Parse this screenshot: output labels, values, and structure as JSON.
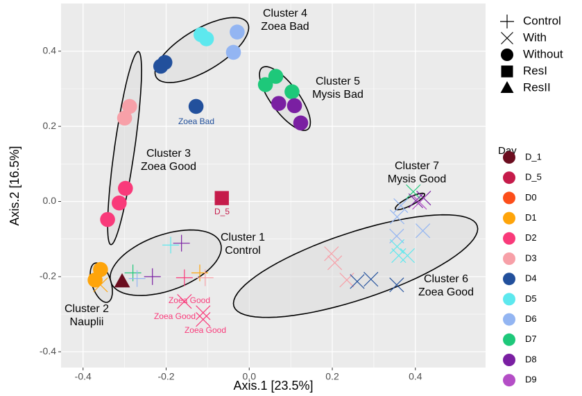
{
  "chart_data": {
    "type": "scatter",
    "x_label": "Axis.1   [23.5%]",
    "y_label": "Axis.2   [16.5%]",
    "xlim": [
      -0.453,
      0.569
    ],
    "ylim": [
      -0.442,
      0.527
    ],
    "xticks": [
      -0.4,
      -0.2,
      {
        "value": 0,
        "label": "0.0"
      },
      0.2,
      0.4
    ],
    "yticks": [
      -0.4,
      -0.2,
      {
        "value": 0,
        "label": "0.0"
      },
      0.2,
      0.4
    ],
    "grid": true,
    "shape_legend": [
      "Control",
      "With",
      "Without",
      "ResI",
      "ResII"
    ],
    "color_legend_title": "Day",
    "days": [
      {
        "name": "D_1",
        "color": "#6b0d1f"
      },
      {
        "name": "D_5",
        "color": "#c51b4a"
      },
      {
        "name": "D0",
        "color": "#fc4e1a"
      },
      {
        "name": "D1",
        "color": "#fea40a"
      },
      {
        "name": "D2",
        "color": "#f93a7a"
      },
      {
        "name": "D3",
        "color": "#f7a0a8"
      },
      {
        "name": "D4",
        "color": "#22509c"
      },
      {
        "name": "D5",
        "color": "#5de8ee"
      },
      {
        "name": "D6",
        "color": "#93b5f2"
      },
      {
        "name": "D7",
        "color": "#1ec87a"
      },
      {
        "name": "D8",
        "color": "#7a1fa2"
      },
      {
        "name": "D9",
        "color": "#b44ec6"
      }
    ],
    "series": [
      {
        "day": "D6",
        "shape": "Without",
        "x": [
          -0.029,
          -0.038
        ],
        "values": [
          0.451,
          0.397
        ]
      },
      {
        "day": "D5",
        "shape": "Without",
        "x": [
          -0.116,
          -0.103
        ],
        "values": [
          0.444,
          0.433
        ]
      },
      {
        "day": "D4",
        "shape": "Without",
        "x": [
          -0.203,
          -0.213,
          -0.128
        ],
        "values": [
          0.37,
          0.36,
          0.253
        ]
      },
      {
        "day": "D7",
        "shape": "Without",
        "x": [
          0.039,
          0.064,
          0.103
        ],
        "values": [
          0.311,
          0.333,
          0.292
        ]
      },
      {
        "day": "D8",
        "shape": "Without",
        "x": [
          0.071,
          0.109,
          0.124
        ],
        "values": [
          0.261,
          0.255,
          0.209
        ]
      },
      {
        "day": "D3",
        "shape": "Without",
        "x": [
          -0.288,
          -0.3
        ],
        "values": [
          0.253,
          0.222
        ]
      },
      {
        "day": "D2",
        "shape": "Without",
        "x": [
          -0.298,
          -0.313,
          -0.341
        ],
        "values": [
          0.035,
          -0.004,
          -0.048
        ]
      },
      {
        "day": "D1",
        "shape": "Without",
        "x": [
          -0.358,
          -0.371
        ],
        "values": [
          -0.181,
          -0.209
        ]
      },
      {
        "day": "D_5",
        "shape": "ResI",
        "x": [
          -0.066
        ],
        "values": [
          0.009
        ]
      },
      {
        "day": "D_1",
        "shape": "ResII",
        "x": [
          -0.306
        ],
        "values": [
          -0.213
        ]
      },
      {
        "day": "D5",
        "shape": "Control",
        "x": [
          -0.189
        ],
        "values": [
          -0.116
        ]
      },
      {
        "day": "D8",
        "shape": "Control",
        "x": [
          -0.163,
          -0.233
        ],
        "values": [
          -0.111,
          -0.2
        ]
      },
      {
        "day": "D7",
        "shape": "Control",
        "x": [
          -0.28
        ],
        "values": [
          -0.19
        ]
      },
      {
        "day": "D6",
        "shape": "Control",
        "x": [
          -0.27
        ],
        "values": [
          -0.205
        ]
      },
      {
        "day": "D2",
        "shape": "Control",
        "x": [
          -0.156
        ],
        "values": [
          -0.203
        ]
      },
      {
        "day": "D1",
        "shape": "Control",
        "x": [
          -0.119,
          -0.366
        ],
        "values": [
          -0.19,
          -0.195
        ]
      },
      {
        "day": "D3",
        "shape": "Control",
        "x": [
          -0.106
        ],
        "values": [
          -0.203
        ]
      },
      {
        "day": "D2",
        "shape": "With",
        "x": [
          -0.156,
          -0.111,
          -0.111
        ],
        "values": [
          -0.266,
          -0.296,
          -0.314
        ]
      },
      {
        "day": "D3",
        "shape": "With",
        "x": [
          0.198,
          0.206,
          0.235
        ],
        "values": [
          -0.139,
          -0.163,
          -0.209
        ]
      },
      {
        "day": "D4",
        "shape": "With",
        "x": [
          0.26,
          0.293,
          0.355
        ],
        "values": [
          -0.213,
          -0.207,
          -0.222
        ]
      },
      {
        "day": "D6",
        "shape": "With",
        "x": [
          0.356,
          0.355,
          0.418,
          0.365
        ],
        "values": [
          -0.041,
          -0.092,
          -0.078,
          -0.011
        ]
      },
      {
        "day": "D5",
        "shape": "With",
        "x": [
          0.356,
          0.36,
          0.381
        ],
        "values": [
          -0.12,
          -0.144,
          -0.144
        ]
      },
      {
        "day": "D7",
        "shape": "With",
        "x": [
          0.395
        ],
        "values": [
          0.026
        ]
      },
      {
        "day": "D8",
        "shape": "With",
        "x": [
          0.401,
          0.42
        ],
        "values": [
          0.002,
          0.009
        ]
      },
      {
        "day": "D9",
        "shape": "With",
        "x": [
          0.41
        ],
        "values": [
          -0.002
        ]
      },
      {
        "day": "D1",
        "shape": "With",
        "x": [
          -0.358
        ],
        "values": [
          -0.222
        ]
      }
    ],
    "clusters": [
      {
        "lines": [
          "Cluster 4",
          "Zoea Bad"
        ],
        "center": [
          -0.114,
          0.403
        ],
        "axis_a": [
          -0.004,
          0.475
        ],
        "axis_b": [
          -0.089,
          0.355
        ]
      },
      {
        "lines": [
          "Cluster 5",
          "Mysis Bad"
        ],
        "center": [
          0.086,
          0.274
        ],
        "axis_a": [
          0.141,
          0.192
        ],
        "axis_b": [
          0.113,
          0.296
        ]
      },
      {
        "lines": [
          "Cluster 3",
          "Zoea Good"
        ],
        "center": [
          -0.3,
          0.142
        ],
        "axis_a": [
          -0.267,
          0.399
        ],
        "axis_b": [
          -0.276,
          0.139
        ]
      },
      {
        "lines": [
          "Cluster 7",
          "Mysis Good"
        ],
        "center": [
          0.387,
          0.0
        ],
        "axis_a": [
          0.422,
          0.02
        ],
        "axis_b": [
          0.392,
          -0.009
        ]
      },
      {
        "lines": [
          "Cluster 1",
          "Control"
        ],
        "center": [
          -0.201,
          -0.163
        ],
        "axis_a": [
          -0.069,
          -0.111
        ],
        "axis_b": [
          -0.179,
          -0.233
        ]
      },
      {
        "lines": [
          "Cluster 6",
          "Zoea Good"
        ],
        "center": [
          0.256,
          -0.172
        ],
        "axis_a": [
          0.549,
          -0.065
        ],
        "axis_b": [
          0.281,
          -0.257
        ]
      },
      {
        "lines": [
          "Cluster 2",
          "Nauplii"
        ],
        "center": [
          -0.356,
          -0.216
        ],
        "axis_a": [
          -0.341,
          -0.268
        ],
        "axis_b": [
          -0.334,
          -0.209
        ]
      }
    ],
    "point_labels": [
      {
        "text": "Zoea Bad",
        "color": "#22509c"
      },
      {
        "text": "D_5",
        "color": "#c51b4a"
      },
      {
        "text": "Zoea Good",
        "color": "#f93a7a"
      },
      {
        "text": "Zoea Good",
        "color": "#f93a7a"
      },
      {
        "text": "Zoea Good",
        "color": "#f93a7a"
      }
    ]
  }
}
